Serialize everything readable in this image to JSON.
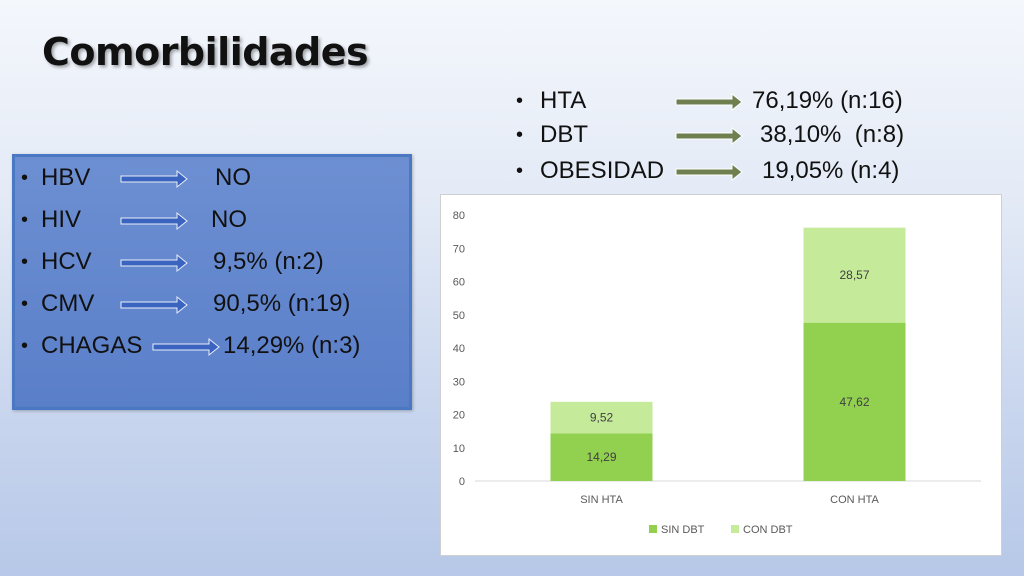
{
  "slide": {
    "title": "Comorbilidades"
  },
  "left_list": [
    {
      "label": "HBV",
      "value": "NO"
    },
    {
      "label": "HIV",
      "value": "NO"
    },
    {
      "label": "HCV",
      "value": "9,5% (n:2)"
    },
    {
      "label": "CMV",
      "value": "90,5% (n:19)"
    },
    {
      "label": "CHAGAS",
      "value": "14,29% (n:3)"
    }
  ],
  "right_list": [
    {
      "label": "HTA",
      "value": "76,19% (n:16)"
    },
    {
      "label": "DBT",
      "value": "38,10%  (n:8)"
    },
    {
      "label": "OBESIDAD",
      "value": "19,05% (n:4)"
    }
  ],
  "colors": {
    "left_arrow": "#3b64c0",
    "right_arrow": "#6f7f4f",
    "box_border": "#4a78c2",
    "sin_dbt": "#92d050",
    "con_dbt": "#c5eb9a"
  },
  "chart_data": {
    "type": "bar",
    "stacked": true,
    "categories": [
      "SIN HTA",
      "CON HTA"
    ],
    "series": [
      {
        "name": "SIN DBT",
        "values": [
          14.29,
          47.62
        ],
        "labels": [
          "14,29",
          "47,62"
        ]
      },
      {
        "name": "CON DBT",
        "values": [
          9.52,
          28.57
        ],
        "labels": [
          "9,52",
          "28,57"
        ]
      }
    ],
    "ylim": [
      0,
      80
    ],
    "yticks": [
      "0",
      "10",
      "20",
      "30",
      "40",
      "50",
      "60",
      "70",
      "80"
    ],
    "grid": false,
    "legend": "bottom"
  }
}
